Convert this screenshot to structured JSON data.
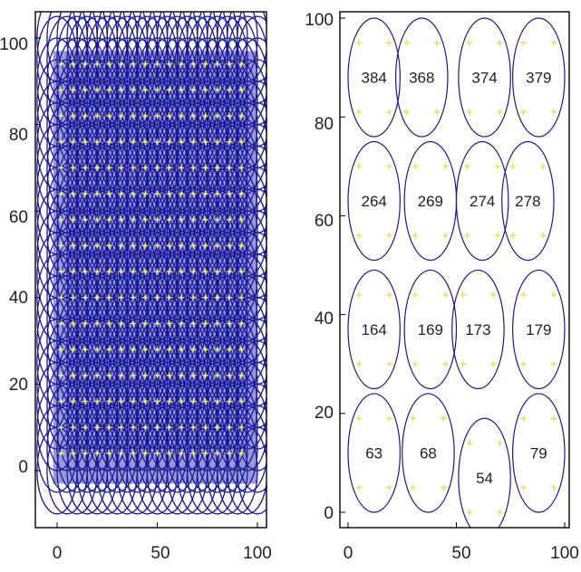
{
  "colors": {
    "circle": "#1a1a8c",
    "dense_fill": "#1a1aa8",
    "marker": "#e6e67a",
    "axis": "#000000",
    "label": "#222222"
  },
  "chart_data": [
    {
      "type": "scatter",
      "title": "",
      "xlabel": "",
      "ylabel": "",
      "xlim": [
        -5,
        105
      ],
      "ylim": [
        -12,
        105
      ],
      "xticks": [
        "0",
        "50",
        "100"
      ],
      "yticks": [
        "0",
        "20",
        "40",
        "60",
        "80",
        "100"
      ],
      "grid": false,
      "legend": "none",
      "description_of_marks": "dense overlapping circles covering the region, with yellow star markers on a regular grid",
      "circle_grid": {
        "x_start": 0,
        "x_end": 100,
        "y_start": 0,
        "y_end": 100,
        "step": 5,
        "radius": 10
      },
      "marker_grid": {
        "x_start": 2,
        "x_end": 96,
        "y_start": 4,
        "y_end": 96,
        "step": 6
      }
    },
    {
      "type": "scatter",
      "title": "",
      "xlabel": "",
      "ylabel": "",
      "xlim": [
        -5,
        105
      ],
      "ylim": [
        -5,
        102
      ],
      "xticks": [
        "0",
        "50",
        "100"
      ],
      "yticks": [
        "0",
        "20",
        "40",
        "60",
        "80",
        "100"
      ],
      "grid": false,
      "legend": "none",
      "circles": [
        {
          "label": "384",
          "cx": 12,
          "cy": 88,
          "r": 12
        },
        {
          "label": "368",
          "cx": 34,
          "cy": 88,
          "r": 12
        },
        {
          "label": "374",
          "cx": 63,
          "cy": 88,
          "r": 12
        },
        {
          "label": "379",
          "cx": 88,
          "cy": 88,
          "r": 12
        },
        {
          "label": "264",
          "cx": 12,
          "cy": 63,
          "r": 12
        },
        {
          "label": "269",
          "cx": 38,
          "cy": 63,
          "r": 12
        },
        {
          "label": "274",
          "cx": 62,
          "cy": 63,
          "r": 12
        },
        {
          "label": "278",
          "cx": 83,
          "cy": 63,
          "r": 12
        },
        {
          "label": "164",
          "cx": 12,
          "cy": 37,
          "r": 12
        },
        {
          "label": "169",
          "cx": 38,
          "cy": 37,
          "r": 12
        },
        {
          "label": "173",
          "cx": 60,
          "cy": 37,
          "r": 12
        },
        {
          "label": "179",
          "cx": 88,
          "cy": 37,
          "r": 12
        },
        {
          "label": "63",
          "cx": 12,
          "cy": 12,
          "r": 12
        },
        {
          "label": "68",
          "cx": 37,
          "cy": 12,
          "r": 12
        },
        {
          "label": "54",
          "cx": 63,
          "cy": 7,
          "r": 12
        },
        {
          "label": "79",
          "cx": 88,
          "cy": 12,
          "r": 12
        }
      ],
      "marker_offsets": [
        [
          -7,
          7
        ],
        [
          7,
          7
        ],
        [
          -7,
          -7
        ],
        [
          7,
          -7
        ]
      ]
    }
  ]
}
